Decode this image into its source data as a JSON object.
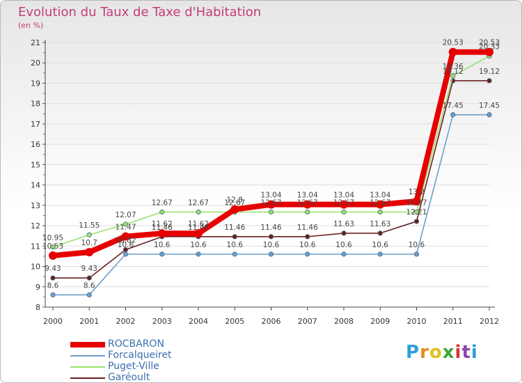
{
  "header": {
    "title": "Evolution du Taux de Taxe d'Habitation",
    "unit": "(en %)"
  },
  "brand": {
    "letters": [
      "P",
      "r",
      "o",
      "x",
      "i",
      "t",
      "i"
    ],
    "colors": [
      "#2f9fd8",
      "#e58b1a",
      "#e3c11a",
      "#3aa83a",
      "#d9322e",
      "#8e44ad",
      "#2f9fd8"
    ]
  },
  "chart_data": {
    "type": "line",
    "title": "Evolution du Taux de Taxe d'Habitation",
    "ylabel": "(en %)",
    "xlabel": "",
    "x": [
      "2000",
      "2001",
      "2002",
      "2003",
      "2004",
      "2005",
      "2006",
      "2007",
      "2008",
      "2009",
      "2010",
      "2011",
      "2012"
    ],
    "ylim": [
      8,
      21
    ],
    "yticks": [
      "8",
      "9",
      "10",
      "11",
      "12",
      "13",
      "14",
      "15",
      "16",
      "17",
      "18",
      "19",
      "20",
      "21"
    ],
    "series": [
      {
        "name": "ROCBARON",
        "color": "#e60000",
        "values": [
          10.53,
          10.7,
          11.47,
          11.62,
          11.62,
          12.8,
          13.04,
          13.04,
          13.04,
          13.04,
          13.2,
          20.53,
          20.53
        ],
        "labels": [
          "10.53",
          "10.7",
          "11.47",
          "11.62",
          "11.62",
          "12.8",
          "13.04",
          "13.04",
          "13.04",
          "13.04",
          "13.2",
          "20.53",
          "20.53"
        ]
      },
      {
        "name": "Forcalqueiret",
        "color": "#6b9fc9",
        "values": [
          8.6,
          8.6,
          10.6,
          10.6,
          10.6,
          10.6,
          10.6,
          10.6,
          10.6,
          10.6,
          10.6,
          17.45,
          17.45
        ],
        "labels": [
          "8.6",
          "8.6",
          "10.6",
          "10.6",
          "10.6",
          "10.6",
          "10.6",
          "10.6",
          "10.6",
          "10.6",
          "10.6",
          "17.45",
          "17.45"
        ]
      },
      {
        "name": "Puget-Ville",
        "color": "#99e06b",
        "values": [
          10.95,
          11.55,
          12.07,
          12.67,
          12.67,
          12.67,
          12.67,
          12.67,
          12.67,
          12.67,
          12.67,
          19.36,
          20.33
        ],
        "labels": [
          "10.95",
          "11.55",
          "12.07",
          "12.67",
          "12.67",
          "12.67",
          "12.67",
          "12.67",
          "12.67",
          "12.67",
          "12.67",
          "19.36",
          "20.33"
        ]
      },
      {
        "name": "Garéoult",
        "color": "#6b1f1f",
        "values": [
          9.43,
          9.43,
          10.82,
          11.46,
          11.46,
          11.46,
          11.46,
          11.46,
          11.63,
          11.63,
          12.21,
          19.12,
          19.12
        ],
        "labels": [
          "9.43",
          "9.43",
          "10.82",
          "11.46",
          "11.46",
          "11.46",
          "11.46",
          "11.46",
          "11.63",
          "11.63",
          "12.21",
          "19.12",
          "19.12"
        ]
      }
    ]
  }
}
